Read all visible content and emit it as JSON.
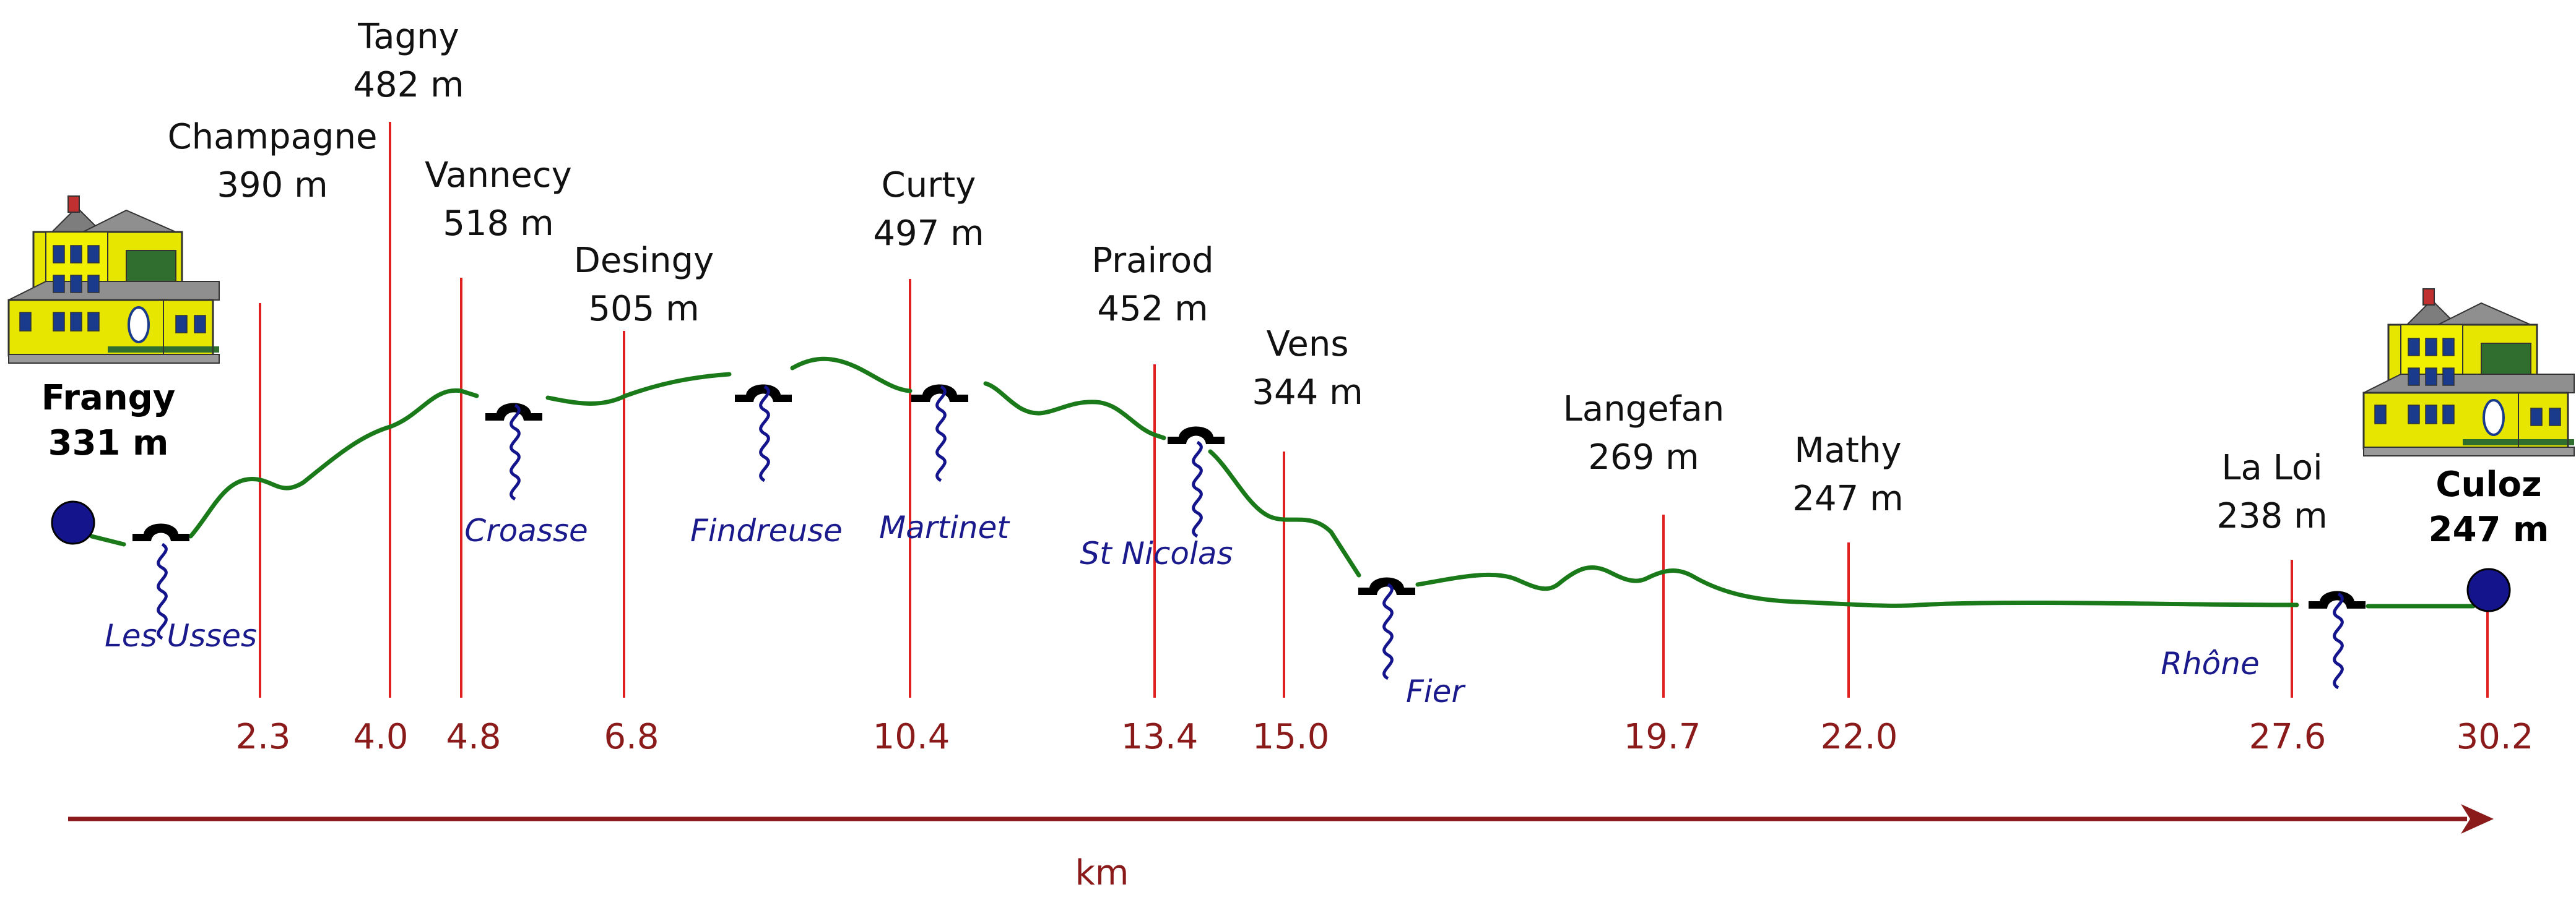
{
  "diagram": {
    "start": {
      "name": "Frangy",
      "altitude": "331 m",
      "km": 0
    },
    "end": {
      "name": "Culoz",
      "altitude": "247 m",
      "km": 30.2
    },
    "places": [
      {
        "name": "Champagne",
        "altitude": "390 m",
        "km_label": "2.3"
      },
      {
        "name": "Tagny",
        "altitude": "482 m",
        "km_label": "4.0"
      },
      {
        "name": "Vannecy",
        "altitude": "518 m",
        "km_label": "4.8"
      },
      {
        "name": "Desingy",
        "altitude": "505 m",
        "km_label": "6.8"
      },
      {
        "name": "Curty",
        "altitude": "497 m",
        "km_label": "10.4"
      },
      {
        "name": "Prairod",
        "altitude": "452 m",
        "km_label": "13.4"
      },
      {
        "name": "Vens",
        "altitude": "344 m",
        "km_label": "15.0"
      },
      {
        "name": "Langefan",
        "altitude": "269 m",
        "km_label": "19.7"
      },
      {
        "name": "Mathy",
        "altitude": "247 m",
        "km_label": "22.0"
      },
      {
        "name": "La Loi",
        "altitude": "238 m",
        "km_label": "27.6"
      }
    ],
    "end_km_label": "30.2",
    "rivers": [
      "Les Usses",
      "Croasse",
      "Findreuse",
      "Martinet",
      "St Nicolas",
      "Fier",
      "Rhône"
    ],
    "axis_label": "km",
    "colors": {
      "profile": "#1a7a1a",
      "marker_line": "#e02020",
      "axis": "#8b1a1a",
      "endpoint_fill": "#14148c",
      "river": "#14148c",
      "house_wall": "#e8e800",
      "house_roof": "#8a8a8a"
    },
    "icons": [
      "house-icon",
      "bridge-icon",
      "river-icon"
    ]
  }
}
